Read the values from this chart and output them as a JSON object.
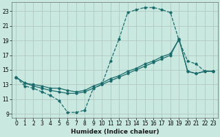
{
  "title": "",
  "xlabel": "Humidex (Indice chaleur)",
  "bg_color": "#c8e8e0",
  "grid_color": "#b0c8c0",
  "line_color": "#1a6b6b",
  "x_ticks": [
    0,
    1,
    2,
    3,
    4,
    5,
    6,
    7,
    8,
    9,
    10,
    11,
    12,
    13,
    14,
    15,
    16,
    17,
    18,
    19,
    20,
    21,
    22,
    23
  ],
  "y_ticks": [
    9,
    11,
    13,
    15,
    17,
    19,
    21,
    23
  ],
  "xlim": [
    -0.5,
    23.5
  ],
  "ylim": [
    8.5,
    24.2
  ],
  "line1_x": [
    0,
    1,
    2,
    3,
    4,
    5,
    6,
    7,
    8,
    9,
    10,
    11,
    12,
    13,
    14,
    15,
    16,
    17,
    18,
    19,
    20,
    21,
    22,
    23
  ],
  "line1_y": [
    14.0,
    12.8,
    12.5,
    12.0,
    11.5,
    10.8,
    9.2,
    9.2,
    9.5,
    12.5,
    13.0,
    16.2,
    19.2,
    22.8,
    23.2,
    23.5,
    23.5,
    23.2,
    22.8,
    19.0,
    16.2,
    15.8,
    14.8,
    14.8
  ],
  "line2_x": [
    0,
    1,
    2,
    3,
    4,
    5,
    6,
    7,
    8,
    9,
    10,
    11,
    12,
    13,
    14,
    15,
    16,
    17,
    18,
    19,
    20,
    21,
    22,
    23
  ],
  "line2_y": [
    14.0,
    13.2,
    12.8,
    12.5,
    12.2,
    12.0,
    11.8,
    11.8,
    12.0,
    12.5,
    13.0,
    13.5,
    14.0,
    14.5,
    15.0,
    15.5,
    16.0,
    16.5,
    17.0,
    19.2,
    14.8,
    14.5,
    14.8,
    14.8
  ],
  "line3_x": [
    0,
    1,
    2,
    3,
    4,
    5,
    6,
    7,
    8,
    9,
    10,
    11,
    12,
    13,
    14,
    15,
    16,
    17,
    18,
    19,
    20,
    21,
    22,
    23
  ],
  "line3_y": [
    14.0,
    13.2,
    13.0,
    12.8,
    12.5,
    12.5,
    12.2,
    12.0,
    12.2,
    12.8,
    13.2,
    13.8,
    14.2,
    14.8,
    15.2,
    15.8,
    16.2,
    16.8,
    17.2,
    19.2,
    14.8,
    14.5,
    14.8,
    14.8
  ],
  "tick_fontsize": 5.5,
  "xlabel_fontsize": 6.5
}
